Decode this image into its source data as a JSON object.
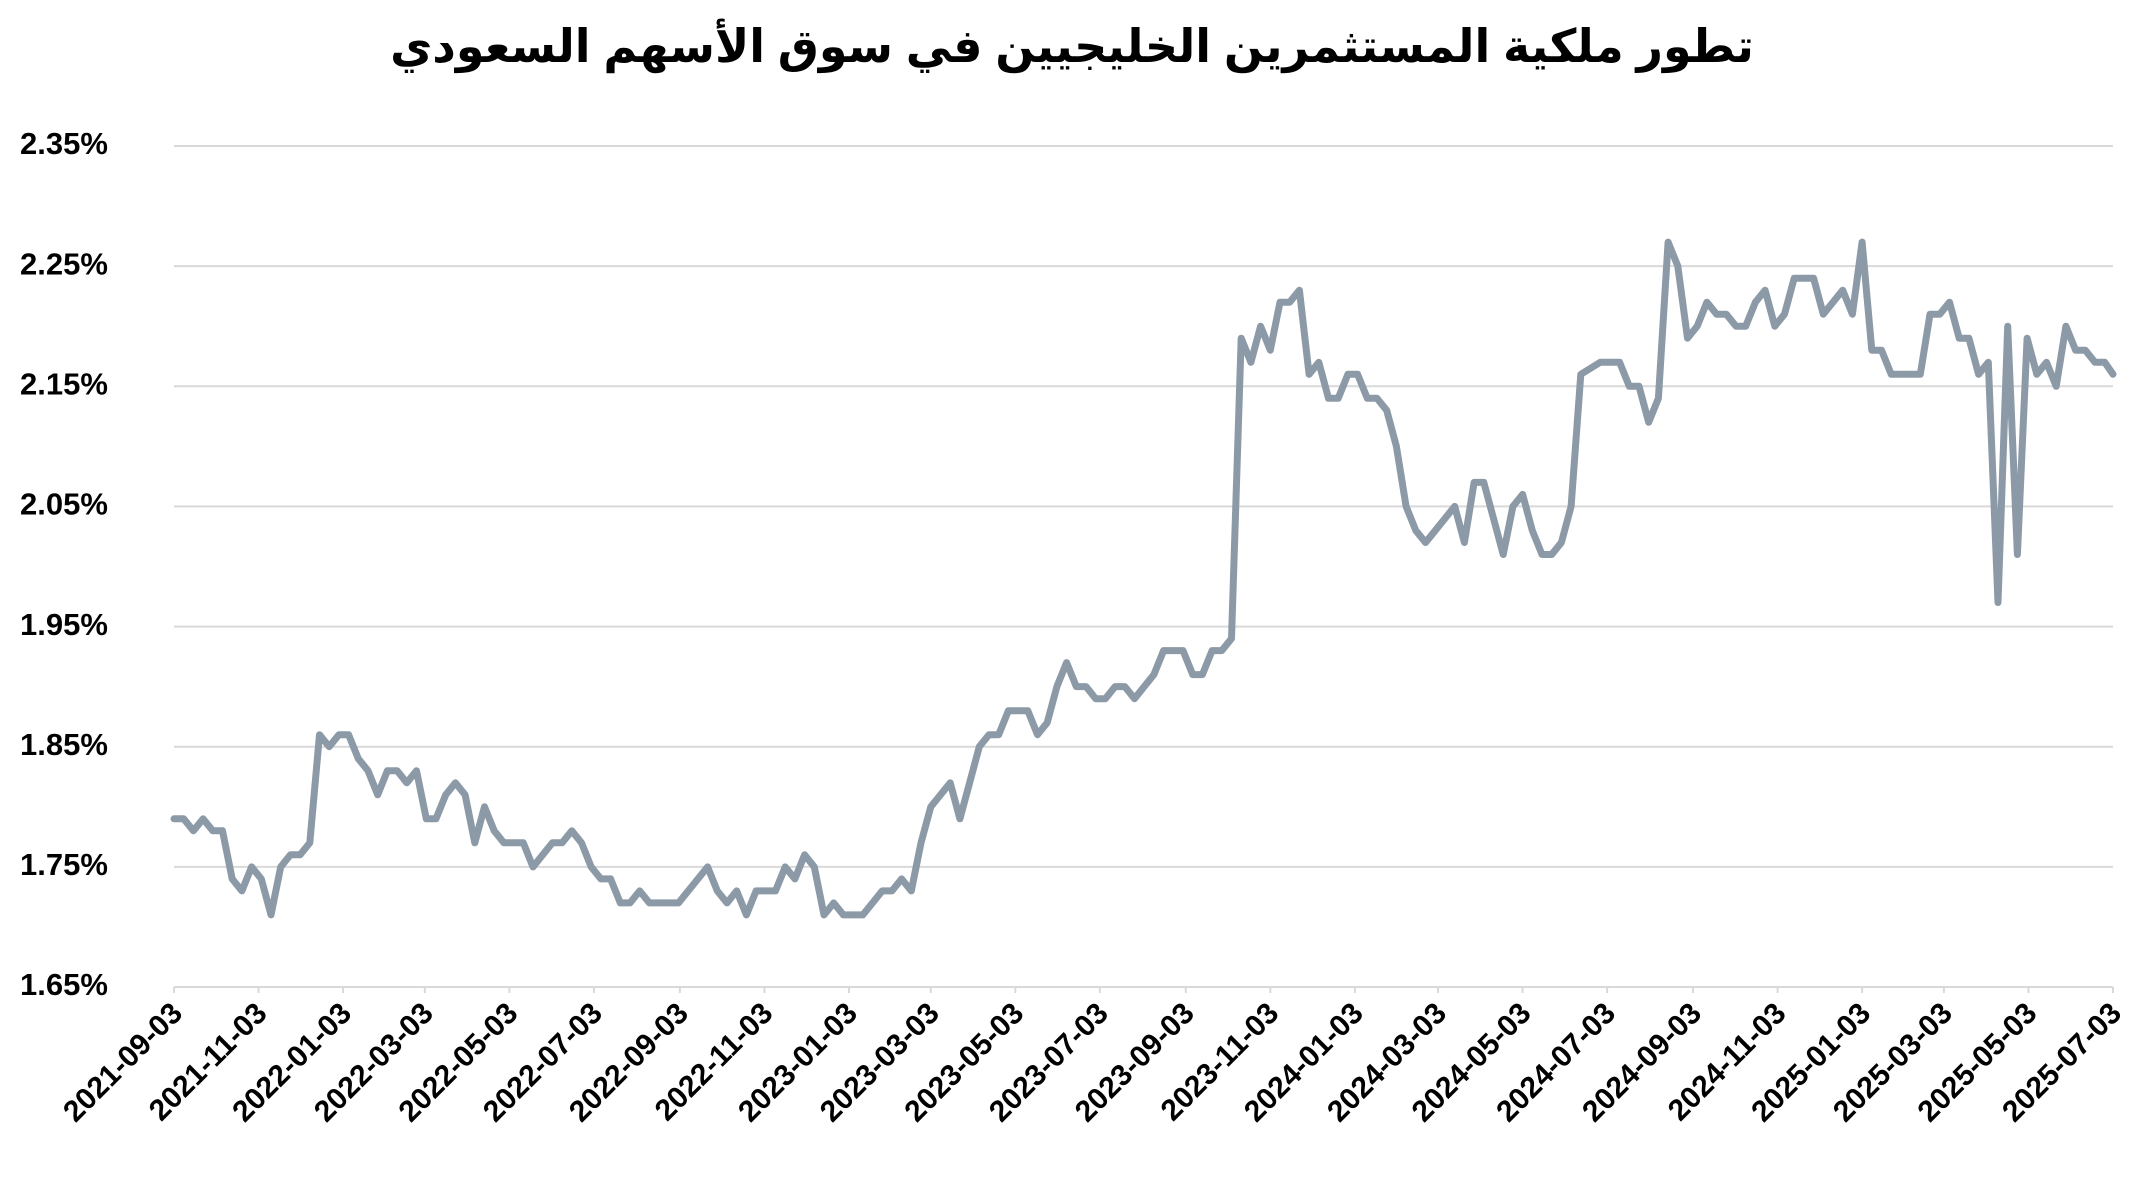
{
  "chart_data": {
    "type": "line",
    "title": "تطور ملكية المستثمرين الخليجيين في سوق الأسهم السعودي",
    "x": [
      "2021-09-03",
      "2021-09-10",
      "2021-09-17",
      "2021-09-24",
      "2021-10-01",
      "2021-10-08",
      "2021-10-15",
      "2021-10-22",
      "2021-10-29",
      "2021-11-05",
      "2021-11-12",
      "2021-11-19",
      "2021-11-26",
      "2021-12-03",
      "2021-12-10",
      "2021-12-17",
      "2021-12-24",
      "2021-12-31",
      "2022-01-07",
      "2022-01-14",
      "2022-01-21",
      "2022-01-28",
      "2022-02-04",
      "2022-02-11",
      "2022-02-18",
      "2022-02-25",
      "2022-03-04",
      "2022-03-11",
      "2022-03-18",
      "2022-03-25",
      "2022-04-01",
      "2022-04-08",
      "2022-04-15",
      "2022-04-22",
      "2022-04-29",
      "2022-05-06",
      "2022-05-13",
      "2022-05-20",
      "2022-05-27",
      "2022-06-03",
      "2022-06-10",
      "2022-06-17",
      "2022-06-24",
      "2022-07-01",
      "2022-07-08",
      "2022-07-15",
      "2022-07-22",
      "2022-07-29",
      "2022-08-05",
      "2022-08-12",
      "2022-08-19",
      "2022-08-26",
      "2022-09-02",
      "2022-09-09",
      "2022-09-16",
      "2022-09-23",
      "2022-09-30",
      "2022-10-07",
      "2022-10-14",
      "2022-10-21",
      "2022-10-28",
      "2022-11-04",
      "2022-11-11",
      "2022-11-18",
      "2022-11-25",
      "2022-12-02",
      "2022-12-09",
      "2022-12-16",
      "2022-12-23",
      "2022-12-30",
      "2023-01-06",
      "2023-01-13",
      "2023-01-20",
      "2023-01-27",
      "2023-02-03",
      "2023-02-10",
      "2023-02-17",
      "2023-02-24",
      "2023-03-03",
      "2023-03-10",
      "2023-03-17",
      "2023-03-24",
      "2023-03-31",
      "2023-04-07",
      "2023-04-14",
      "2023-04-21",
      "2023-04-28",
      "2023-05-05",
      "2023-05-12",
      "2023-05-19",
      "2023-05-26",
      "2023-06-02",
      "2023-06-09",
      "2023-06-16",
      "2023-06-23",
      "2023-06-30",
      "2023-07-07",
      "2023-07-14",
      "2023-07-21",
      "2023-07-28",
      "2023-08-04",
      "2023-08-11",
      "2023-08-18",
      "2023-08-25",
      "2023-09-01",
      "2023-09-08",
      "2023-09-15",
      "2023-09-22",
      "2023-09-29",
      "2023-10-06",
      "2023-10-13",
      "2023-10-20",
      "2023-10-27",
      "2023-11-03",
      "2023-11-10",
      "2023-11-17",
      "2023-11-24",
      "2023-12-01",
      "2023-12-08",
      "2023-12-15",
      "2023-12-22",
      "2023-12-29",
      "2024-01-05",
      "2024-01-12",
      "2024-01-19",
      "2024-01-26",
      "2024-02-02",
      "2024-02-09",
      "2024-02-16",
      "2024-02-23",
      "2024-03-01",
      "2024-03-08",
      "2024-03-15",
      "2024-03-22",
      "2024-03-29",
      "2024-04-05",
      "2024-04-12",
      "2024-04-19",
      "2024-04-26",
      "2024-05-03",
      "2024-05-10",
      "2024-05-17",
      "2024-05-24",
      "2024-05-31",
      "2024-06-07",
      "2024-06-14",
      "2024-06-21",
      "2024-06-28",
      "2024-07-05",
      "2024-07-12",
      "2024-07-19",
      "2024-07-26",
      "2024-08-02",
      "2024-08-09",
      "2024-08-16",
      "2024-08-23",
      "2024-08-30",
      "2024-09-06",
      "2024-09-13",
      "2024-09-20",
      "2024-09-27",
      "2024-10-04",
      "2024-10-11",
      "2024-10-18",
      "2024-10-25",
      "2024-11-01",
      "2024-11-08",
      "2024-11-15",
      "2024-11-22",
      "2024-11-29",
      "2024-12-06",
      "2024-12-13",
      "2024-12-20",
      "2024-12-27",
      "2025-01-03",
      "2025-01-10",
      "2025-01-17",
      "2025-01-24",
      "2025-01-31",
      "2025-02-07",
      "2025-02-14",
      "2025-02-21",
      "2025-02-28",
      "2025-03-07",
      "2025-03-14",
      "2025-03-21",
      "2025-03-28",
      "2025-04-04",
      "2025-04-11",
      "2025-04-18",
      "2025-04-25",
      "2025-05-02",
      "2025-05-09",
      "2025-05-16",
      "2025-05-23",
      "2025-05-30",
      "2025-06-06",
      "2025-06-13",
      "2025-06-20",
      "2025-06-27",
      "2025-07-03"
    ],
    "series": [
      {
        "name": "ملكية المستثمرين الخليجيين",
        "color": "#8c9aa8",
        "values": [
          1.79,
          1.79,
          1.78,
          1.79,
          1.78,
          1.78,
          1.74,
          1.73,
          1.75,
          1.74,
          1.71,
          1.75,
          1.76,
          1.76,
          1.77,
          1.86,
          1.85,
          1.86,
          1.86,
          1.84,
          1.83,
          1.81,
          1.83,
          1.83,
          1.82,
          1.83,
          1.79,
          1.79,
          1.81,
          1.82,
          1.81,
          1.77,
          1.8,
          1.78,
          1.77,
          1.77,
          1.77,
          1.75,
          1.76,
          1.77,
          1.77,
          1.78,
          1.77,
          1.75,
          1.74,
          1.74,
          1.72,
          1.72,
          1.73,
          1.72,
          1.72,
          1.72,
          1.72,
          1.73,
          1.74,
          1.75,
          1.73,
          1.72,
          1.73,
          1.71,
          1.73,
          1.73,
          1.73,
          1.75,
          1.74,
          1.76,
          1.75,
          1.71,
          1.72,
          1.71,
          1.71,
          1.71,
          1.72,
          1.73,
          1.73,
          1.74,
          1.73,
          1.77,
          1.8,
          1.81,
          1.82,
          1.79,
          1.82,
          1.85,
          1.86,
          1.86,
          1.88,
          1.88,
          1.88,
          1.86,
          1.87,
          1.9,
          1.92,
          1.9,
          1.9,
          1.89,
          1.89,
          1.9,
          1.9,
          1.89,
          1.9,
          1.91,
          1.93,
          1.93,
          1.93,
          1.91,
          1.91,
          1.93,
          1.93,
          1.94,
          2.19,
          2.17,
          2.2,
          2.18,
          2.22,
          2.22,
          2.23,
          2.16,
          2.17,
          2.14,
          2.14,
          2.16,
          2.16,
          2.14,
          2.14,
          2.13,
          2.1,
          2.05,
          2.03,
          2.02,
          2.03,
          2.04,
          2.05,
          2.02,
          2.07,
          2.07,
          2.04,
          2.01,
          2.05,
          2.06,
          2.03,
          2.01,
          2.01,
          2.02,
          2.05,
          2.16,
          2.165,
          2.17,
          2.17,
          2.17,
          2.15,
          2.15,
          2.12,
          2.14,
          2.27,
          2.25,
          2.19,
          2.2,
          2.22,
          2.21,
          2.21,
          2.2,
          2.2,
          2.22,
          2.23,
          2.2,
          2.21,
          2.24,
          2.24,
          2.24,
          2.21,
          2.22,
          2.23,
          2.21,
          2.27,
          2.18,
          2.18,
          2.16,
          2.16,
          2.16,
          2.16,
          2.21,
          2.21,
          2.22,
          2.19,
          2.19,
          2.16,
          2.17,
          1.97,
          2.2,
          2.01,
          2.19,
          2.16,
          2.17,
          2.15,
          2.2,
          2.18,
          2.18,
          2.17,
          2.17,
          2.16
        ]
      }
    ],
    "xlim": [
      "2021-09-03",
      "2025-07-03"
    ],
    "xticks": [
      "2021-09-03",
      "2021-11-03",
      "2022-01-03",
      "2022-03-03",
      "2022-05-03",
      "2022-07-03",
      "2022-09-03",
      "2022-11-03",
      "2023-01-03",
      "2023-03-03",
      "2023-05-03",
      "2023-07-03",
      "2023-09-03",
      "2023-11-03",
      "2024-01-03",
      "2024-03-03",
      "2024-05-03",
      "2024-07-03",
      "2024-09-03",
      "2024-11-03",
      "2025-01-03",
      "2025-03-03",
      "2025-05-03",
      "2025-07-03"
    ],
    "ylim": [
      1.65,
      2.35
    ],
    "yticks": [
      {
        "value": 1.65,
        "label": "1.65%"
      },
      {
        "value": 1.75,
        "label": "1.75%"
      },
      {
        "value": 1.85,
        "label": "1.85%"
      },
      {
        "value": 1.95,
        "label": "1.95%"
      },
      {
        "value": 2.05,
        "label": "2.05%"
      },
      {
        "value": 2.15,
        "label": "2.15%"
      },
      {
        "value": 2.25,
        "label": "2.25%"
      },
      {
        "value": 2.35,
        "label": "2.35%"
      }
    ],
    "grid": true
  }
}
